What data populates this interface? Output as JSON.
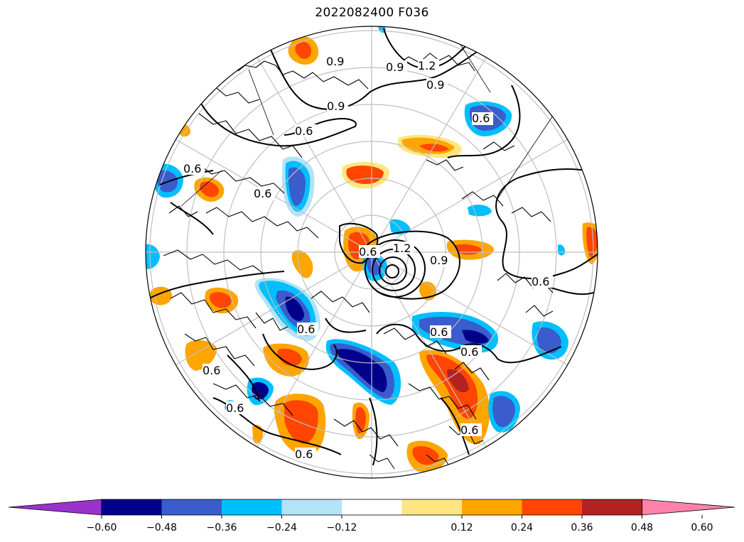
{
  "title": "2022082400 F036",
  "colors": {
    "coast": "#000000",
    "grid": "#bfbfbf",
    "contour": "#000000",
    "shade_neg": [
      "#9933cc",
      "#00008b",
      "#3a5ccc",
      "#00bfff",
      "#b3e3f7"
    ],
    "shade_pos": [
      "#ffffff",
      "#ffe680",
      "#ffa500",
      "#ff4500",
      "#b22222",
      "#ff82ab"
    ]
  },
  "contour_labels": [
    "0.9",
    "1.2",
    "0.9",
    "0.9",
    "0.9",
    "0.6",
    "0.6",
    "0.6",
    "0.6",
    "0.6",
    "0.9",
    "1.2",
    "0.6",
    "0.6",
    "0.6",
    "0.6",
    "0.6",
    "0.6",
    "0.6",
    "0.6"
  ],
  "colorbar": {
    "ticks": [
      "−0.60",
      "−0.48",
      "−0.36",
      "−0.24",
      "−0.12",
      "0.12",
      "0.24",
      "0.36",
      "0.48",
      "0.60"
    ],
    "extend": "both"
  }
}
